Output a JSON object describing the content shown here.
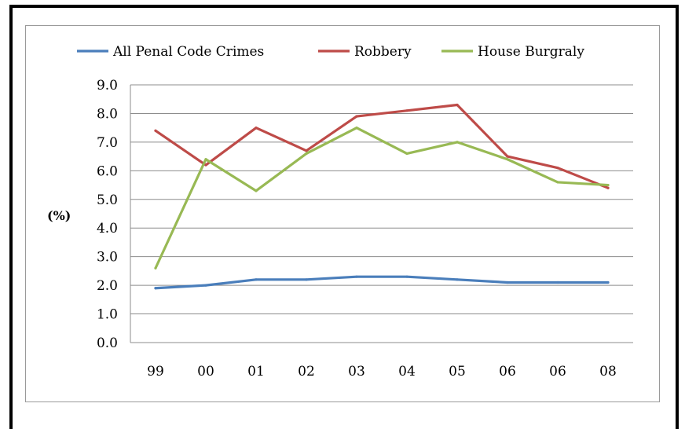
{
  "chart_data": {
    "type": "line",
    "title": "",
    "xlabel": "",
    "ylabel": "(%)",
    "categories": [
      "99",
      "00",
      "01",
      "02",
      "03",
      "04",
      "05",
      "06",
      "06",
      "08"
    ],
    "ylim": [
      0,
      9
    ],
    "yticks": [
      "0.0",
      "1.0",
      "2.0",
      "3.0",
      "4.0",
      "5.0",
      "6.0",
      "7.0",
      "8.0",
      "9.0"
    ],
    "grid": true,
    "legend_position": "top",
    "series": [
      {
        "name": "All Penal Code Crimes",
        "color": "#4a7ebb",
        "values": [
          1.9,
          2.0,
          2.2,
          2.2,
          2.3,
          2.3,
          2.2,
          2.1,
          2.1,
          2.1
        ]
      },
      {
        "name": "Robbery",
        "color": "#be4b48",
        "values": [
          7.4,
          6.2,
          7.5,
          6.7,
          7.9,
          8.1,
          8.3,
          6.5,
          6.1,
          5.4
        ]
      },
      {
        "name": "House Burgraly",
        "color": "#98b954",
        "values": [
          2.6,
          6.4,
          5.3,
          6.6,
          7.5,
          6.6,
          7.0,
          6.4,
          5.6,
          5.5
        ]
      }
    ]
  }
}
